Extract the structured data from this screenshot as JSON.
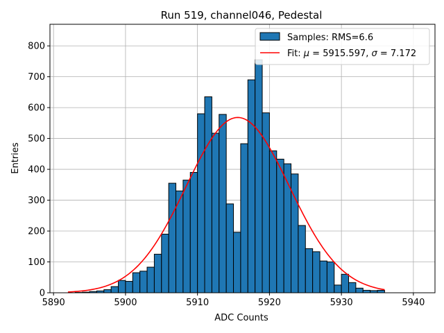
{
  "chart_data": {
    "type": "bar",
    "title": "Run 519, channel046, Pedestal",
    "xlabel": "ADC Counts",
    "ylabel": "Entries",
    "xlim": [
      5889.5,
      5943
    ],
    "ylim": [
      0,
      870
    ],
    "xticks": [
      5890,
      5900,
      5910,
      5920,
      5930,
      5940
    ],
    "yticks": [
      0,
      100,
      200,
      300,
      400,
      500,
      600,
      700,
      800
    ],
    "grid": true,
    "legend_position": "top-right",
    "series": [
      {
        "name": "Samples: RMS=6.6",
        "kind": "histogram",
        "color": "#1f77b4",
        "edgecolor": "#000000",
        "bin_width": 1,
        "bin_left_edges": [
          5893,
          5894,
          5895,
          5896,
          5897,
          5898,
          5899,
          5900,
          5901,
          5902,
          5903,
          5904,
          5905,
          5906,
          5907,
          5908,
          5909,
          5910,
          5911,
          5912,
          5913,
          5914,
          5915,
          5916,
          5917,
          5918,
          5919,
          5920,
          5921,
          5922,
          5923,
          5924,
          5925,
          5926,
          5927,
          5928,
          5929,
          5930,
          5931,
          5932,
          5933,
          5934,
          5935
        ],
        "values": [
          1,
          2,
          4,
          6,
          10,
          20,
          40,
          37,
          65,
          70,
          83,
          125,
          190,
          355,
          330,
          365,
          390,
          580,
          635,
          517,
          578,
          288,
          196,
          483,
          690,
          755,
          583,
          460,
          433,
          418,
          385,
          218,
          143,
          133,
          103,
          100,
          25,
          60,
          33,
          15,
          8,
          7,
          8
        ]
      },
      {
        "name": "Fit: μ = 5915.597, σ = 7.172",
        "kind": "gaussian_fit",
        "color": "#ff0000",
        "mu": 5915.597,
        "sigma": 7.172,
        "amplitude": 568,
        "x_range": [
          5892,
          5936
        ]
      }
    ]
  }
}
